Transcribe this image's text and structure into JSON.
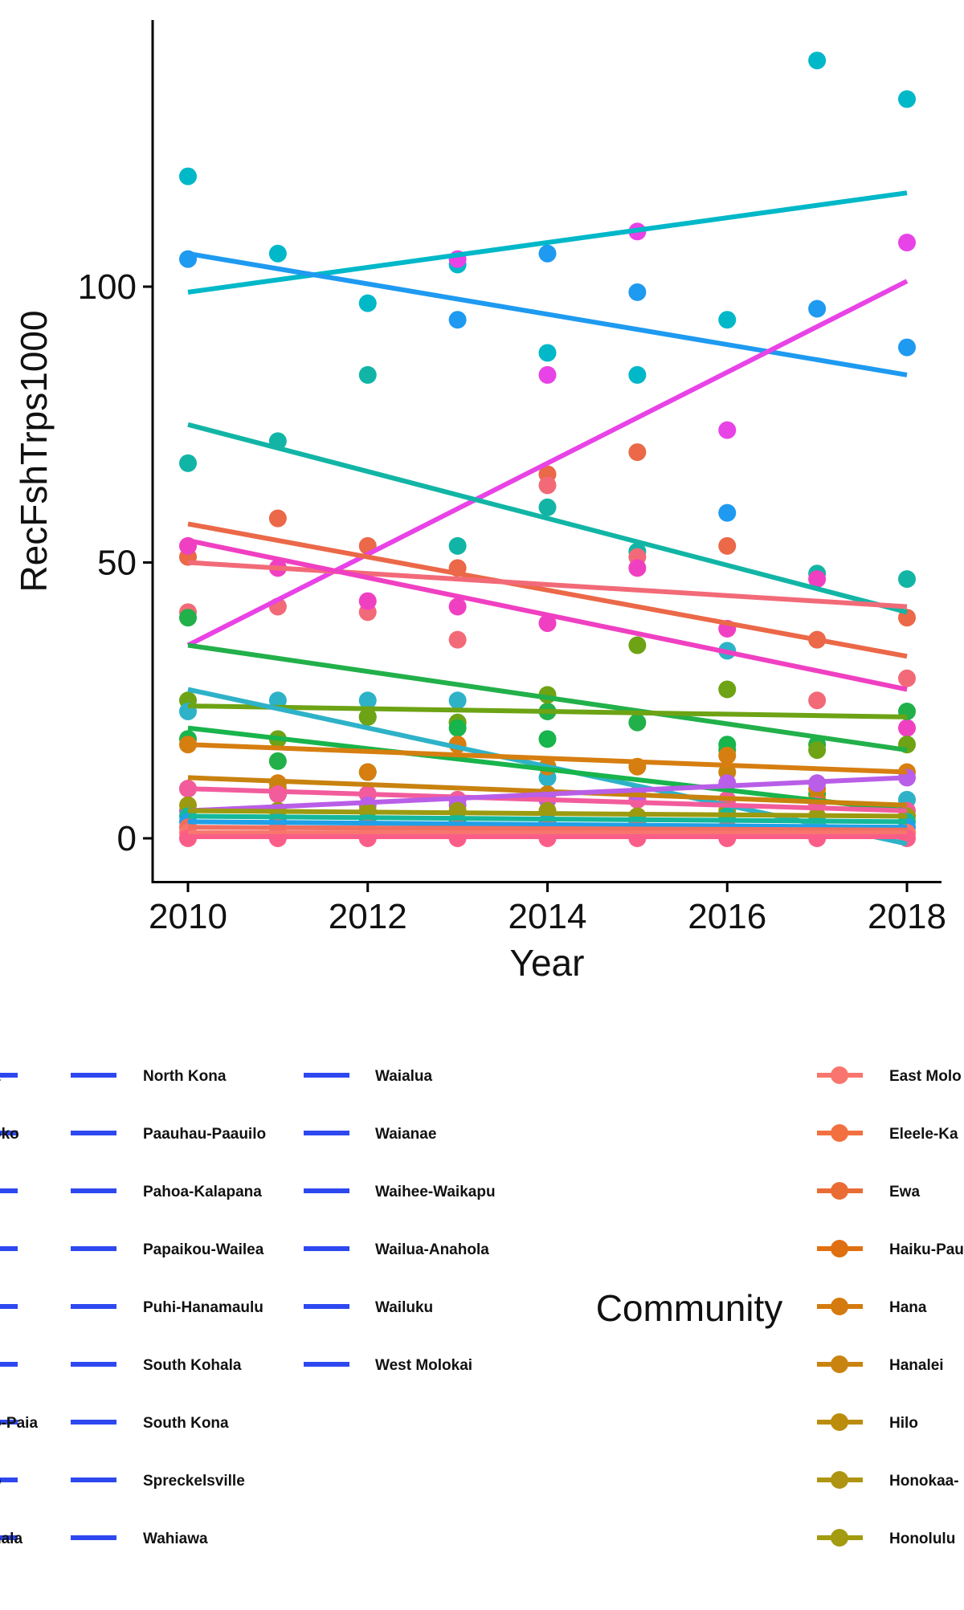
{
  "chart_data": {
    "type": "scatter",
    "xlabel": "Year",
    "ylabel": "RecFshTrps1000",
    "xlim": [
      2009.6,
      2018.4
    ],
    "ylim": [
      -8,
      148
    ],
    "x_ticks": [
      2010,
      2012,
      2014,
      2016,
      2018
    ],
    "y_ticks": [
      0,
      50,
      100
    ],
    "grid": false,
    "legend": {
      "title": "Community",
      "blue_columns": [
        [
          "a",
          "oko",
          "",
          "",
          "",
          "",
          "o-Paia",
          "o",
          "hala"
        ],
        [
          "North Kona",
          "Paauhau-Paauilo",
          "Pahoa-Kalapana",
          "Papaikou-Wailea",
          "Puhi-Hanamaulu",
          "South Kohala",
          "South Kona",
          "Spreckelsville",
          "Wahiawa"
        ],
        [
          "Waialua",
          "Waianae",
          "Waihee-Waikapu",
          "Wailua-Anahola",
          "Wailuku",
          "West Molokai"
        ]
      ],
      "blue_color": "#2E48F0",
      "point_entries": [
        {
          "label": "East Molo",
          "color": "#F8766D"
        },
        {
          "label": "Eleele-Ka",
          "color": "#F2703F"
        },
        {
          "label": "Ewa",
          "color": "#EA6C35"
        },
        {
          "label": "Haiku-Pau",
          "color": "#DE7012"
        },
        {
          "label": "Hana",
          "color": "#D47A0E"
        },
        {
          "label": "Hanalei",
          "color": "#C98410"
        },
        {
          "label": "Hilo",
          "color": "#BC8C0C"
        },
        {
          "label": "Honokaa-",
          "color": "#AE9410"
        },
        {
          "label": "Honolulu",
          "color": "#A39B10"
        }
      ]
    },
    "series": [
      {
        "color": "#00B8C8",
        "points": [
          [
            2010,
            120
          ],
          [
            2011,
            106
          ],
          [
            2012,
            97
          ],
          [
            2013,
            104
          ],
          [
            2014,
            88
          ],
          [
            2015,
            84
          ],
          [
            2016,
            94
          ],
          [
            2017,
            141
          ],
          [
            2018,
            134
          ]
        ],
        "fit": [
          [
            2010,
            99
          ],
          [
            2018,
            117
          ]
        ]
      },
      {
        "color": "#1E9AF0",
        "points": [
          [
            2010,
            105
          ],
          [
            2013,
            94
          ],
          [
            2014,
            106
          ],
          [
            2015,
            99
          ],
          [
            2016,
            59
          ],
          [
            2017,
            96
          ],
          [
            2018,
            89
          ]
        ],
        "fit": [
          [
            2010,
            106
          ],
          [
            2018,
            84
          ]
        ]
      },
      {
        "color": "#E843E6",
        "points": [
          [
            2013,
            105
          ],
          [
            2014,
            84
          ],
          [
            2015,
            110
          ],
          [
            2016,
            74
          ],
          [
            2018,
            108
          ]
        ],
        "fit": [
          [
            2010,
            35
          ],
          [
            2018,
            101
          ]
        ]
      },
      {
        "color": "#12B5A5",
        "points": [
          [
            2010,
            68
          ],
          [
            2011,
            72
          ],
          [
            2012,
            84
          ],
          [
            2013,
            53
          ],
          [
            2014,
            60
          ],
          [
            2015,
            52
          ],
          [
            2017,
            48
          ],
          [
            2018,
            47
          ]
        ],
        "fit": [
          [
            2010,
            75
          ],
          [
            2018,
            41
          ]
        ]
      },
      {
        "color": "#EB6848",
        "points": [
          [
            2010,
            51
          ],
          [
            2011,
            58
          ],
          [
            2012,
            53
          ],
          [
            2013,
            49
          ],
          [
            2014,
            66
          ],
          [
            2015,
            70
          ],
          [
            2016,
            53
          ],
          [
            2017,
            36
          ],
          [
            2018,
            40
          ]
        ],
        "fit": [
          [
            2010,
            57
          ],
          [
            2018,
            33
          ]
        ]
      },
      {
        "color": "#F26A78",
        "points": [
          [
            2010,
            41
          ],
          [
            2011,
            42
          ],
          [
            2012,
            41
          ],
          [
            2013,
            36
          ],
          [
            2014,
            64
          ],
          [
            2015,
            51
          ],
          [
            2017,
            25
          ],
          [
            2018,
            29
          ]
        ],
        "fit": [
          [
            2010,
            50
          ],
          [
            2018,
            42
          ]
        ]
      },
      {
        "color": "#F040C2",
        "points": [
          [
            2010,
            53
          ],
          [
            2011,
            49
          ],
          [
            2012,
            43
          ],
          [
            2013,
            42
          ],
          [
            2014,
            39
          ],
          [
            2015,
            49
          ],
          [
            2016,
            38
          ],
          [
            2017,
            47
          ],
          [
            2018,
            20
          ]
        ],
        "fit": [
          [
            2010,
            54
          ],
          [
            2018,
            27
          ]
        ]
      },
      {
        "color": "#22B04A",
        "points": [
          [
            2010,
            40
          ],
          [
            2011,
            14
          ],
          [
            2012,
            22
          ],
          [
            2013,
            21
          ],
          [
            2014,
            23
          ],
          [
            2015,
            21
          ],
          [
            2016,
            16
          ],
          [
            2017,
            17
          ],
          [
            2018,
            23
          ]
        ],
        "fit": [
          [
            2010,
            35
          ],
          [
            2018,
            16
          ]
        ]
      },
      {
        "color": "#6DA314",
        "points": [
          [
            2010,
            25
          ],
          [
            2011,
            18
          ],
          [
            2012,
            22
          ],
          [
            2013,
            21
          ],
          [
            2014,
            26
          ],
          [
            2015,
            35
          ],
          [
            2016,
            27
          ],
          [
            2017,
            16
          ],
          [
            2018,
            17
          ]
        ],
        "fit": [
          [
            2010,
            24
          ],
          [
            2018,
            22
          ]
        ]
      },
      {
        "color": "#2EB2C8",
        "points": [
          [
            2010,
            23
          ],
          [
            2011,
            25
          ],
          [
            2012,
            25
          ],
          [
            2013,
            25
          ],
          [
            2014,
            11
          ],
          [
            2015,
            8
          ],
          [
            2016,
            34
          ],
          [
            2017,
            7
          ],
          [
            2018,
            7
          ]
        ],
        "fit": [
          [
            2010,
            27
          ],
          [
            2018,
            -1
          ]
        ]
      },
      {
        "color": "#18B44C",
        "points": [
          [
            2010,
            18
          ],
          [
            2011,
            8
          ],
          [
            2012,
            12
          ],
          [
            2013,
            20
          ],
          [
            2014,
            18
          ],
          [
            2015,
            4
          ],
          [
            2016,
            17
          ],
          [
            2017,
            8
          ],
          [
            2018,
            4
          ]
        ],
        "fit": [
          [
            2010,
            20
          ],
          [
            2018,
            5
          ]
        ]
      },
      {
        "color": "#D67E10",
        "points": [
          [
            2010,
            17
          ],
          [
            2011,
            10
          ],
          [
            2012,
            12
          ],
          [
            2013,
            17
          ],
          [
            2014,
            13
          ],
          [
            2015,
            13
          ],
          [
            2016,
            15
          ],
          [
            2017,
            9
          ],
          [
            2018,
            12
          ]
        ],
        "fit": [
          [
            2010,
            17
          ],
          [
            2018,
            12
          ]
        ]
      },
      {
        "color": "#C8820E",
        "points": [
          [
            2010,
            9
          ],
          [
            2011,
            9
          ],
          [
            2012,
            8
          ],
          [
            2013,
            7
          ],
          [
            2014,
            8
          ],
          [
            2015,
            7
          ],
          [
            2016,
            12
          ],
          [
            2017,
            7
          ],
          [
            2018,
            4
          ]
        ],
        "fit": [
          [
            2010,
            11
          ],
          [
            2018,
            6
          ]
        ]
      },
      {
        "color": "#F25C9C",
        "points": [
          [
            2010,
            9
          ],
          [
            2011,
            8
          ],
          [
            2012,
            8
          ],
          [
            2013,
            7
          ],
          [
            2014,
            7
          ],
          [
            2015,
            7
          ],
          [
            2016,
            7
          ],
          [
            2017,
            6
          ],
          [
            2018,
            5
          ]
        ],
        "fit": [
          [
            2010,
            9
          ],
          [
            2018,
            5
          ]
        ]
      },
      {
        "color": "#B95EE8",
        "points": [
          [
            2010,
            5
          ],
          [
            2011,
            5
          ],
          [
            2012,
            6
          ],
          [
            2013,
            6
          ],
          [
            2014,
            7
          ],
          [
            2015,
            8
          ],
          [
            2016,
            10
          ],
          [
            2017,
            10
          ],
          [
            2018,
            11
          ]
        ],
        "fit": [
          [
            2010,
            5
          ],
          [
            2018,
            11
          ]
        ]
      },
      {
        "color": "#9C9A10",
        "points": [
          [
            2010,
            6
          ],
          [
            2011,
            5
          ],
          [
            2012,
            5
          ],
          [
            2013,
            5
          ],
          [
            2014,
            5
          ],
          [
            2015,
            4
          ],
          [
            2016,
            5
          ],
          [
            2017,
            4
          ],
          [
            2018,
            4
          ]
        ],
        "fit": [
          [
            2010,
            5
          ],
          [
            2018,
            4
          ]
        ]
      },
      {
        "color": "#15B89A",
        "points": [
          [
            2010,
            4
          ],
          [
            2011,
            3
          ],
          [
            2012,
            3
          ],
          [
            2013,
            3
          ],
          [
            2014,
            3
          ],
          [
            2015,
            3
          ],
          [
            2016,
            4
          ],
          [
            2017,
            3
          ],
          [
            2018,
            3
          ]
        ],
        "fit": [
          [
            2010,
            4
          ],
          [
            2018,
            3
          ]
        ]
      },
      {
        "color": "#1FA0E8",
        "points": [
          [
            2010,
            3
          ],
          [
            2011,
            3
          ],
          [
            2012,
            2
          ],
          [
            2013,
            2
          ],
          [
            2014,
            3
          ],
          [
            2015,
            2
          ],
          [
            2016,
            2
          ],
          [
            2017,
            2
          ],
          [
            2018,
            2
          ]
        ],
        "fit": [
          [
            2010,
            3
          ],
          [
            2018,
            2
          ]
        ]
      },
      {
        "color": "#F06E60",
        "points": [
          [
            2010,
            2
          ],
          [
            2011,
            2
          ],
          [
            2012,
            2
          ],
          [
            2013,
            2
          ],
          [
            2014,
            2
          ],
          [
            2015,
            2
          ],
          [
            2016,
            2
          ],
          [
            2017,
            1
          ],
          [
            2018,
            1
          ]
        ],
        "fit": [
          [
            2010,
            2
          ],
          [
            2018,
            1.5
          ]
        ]
      },
      {
        "color": "#F8766D",
        "points": [
          [
            2010,
            1
          ],
          [
            2011,
            1
          ],
          [
            2012,
            1
          ],
          [
            2013,
            1
          ],
          [
            2014,
            1
          ],
          [
            2015,
            1
          ],
          [
            2016,
            1
          ],
          [
            2017,
            1
          ],
          [
            2018,
            1
          ]
        ],
        "fit": [
          [
            2010,
            1
          ],
          [
            2018,
            1
          ]
        ]
      },
      {
        "color": "#FA5E88",
        "points": [
          [
            2010,
            0
          ],
          [
            2011,
            0
          ],
          [
            2012,
            0
          ],
          [
            2013,
            0
          ],
          [
            2014,
            0
          ],
          [
            2015,
            0
          ],
          [
            2016,
            0
          ],
          [
            2017,
            0
          ],
          [
            2018,
            0
          ]
        ],
        "fit": [
          [
            2010,
            0.3
          ],
          [
            2018,
            0.3
          ]
        ]
      }
    ]
  }
}
